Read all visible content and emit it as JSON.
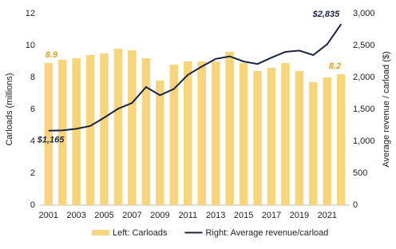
{
  "chart_data": {
    "type": "bar-line",
    "y_label": "Carloads (millions)",
    "y2_label": "Average revenue / carload ($)",
    "categories": [
      "2001",
      null,
      "2003",
      null,
      "2005",
      null,
      "2007",
      null,
      "2009",
      null,
      "2011",
      null,
      "2013",
      null,
      "2015",
      null,
      "2017",
      null,
      "2019",
      null,
      "2021",
      null
    ],
    "ylim": [
      0,
      12
    ],
    "yticks": [
      0,
      2,
      4,
      6,
      8,
      10,
      12
    ],
    "y2lim": [
      0,
      3000
    ],
    "y2ticks": [
      0,
      500,
      {
        "value": 1000,
        "label": "1,000"
      },
      {
        "value": 1500,
        "label": "1,500"
      },
      {
        "value": 2000,
        "label": "2,000"
      },
      {
        "value": 2500,
        "label": "2,500"
      },
      {
        "value": 3000,
        "label": "3,000"
      }
    ],
    "series": [
      {
        "name": "Left: Carloads",
        "type": "bar",
        "color": "#f7d57c",
        "values": [
          8.9,
          9.1,
          9.2,
          9.4,
          9.5,
          9.8,
          9.7,
          9.2,
          7.8,
          8.8,
          9.0,
          9.0,
          9.0,
          9.6,
          8.9,
          8.4,
          8.6,
          8.9,
          8.4,
          7.7,
          8.0,
          8.2
        ],
        "value_labels": [
          "8.9",
          null,
          null,
          null,
          null,
          null,
          null,
          null,
          null,
          null,
          null,
          null,
          null,
          null,
          null,
          null,
          null,
          null,
          null,
          null,
          null,
          "8.2"
        ],
        "label_color": "#d9a520"
      },
      {
        "name": "Right: Average revenue/carload",
        "type": "line",
        "axis": "y2",
        "color": "#1c2540",
        "values": [
          1165,
          1170,
          1195,
          1240,
          1370,
          1510,
          1600,
          1850,
          1720,
          1820,
          2040,
          2170,
          2290,
          2330,
          2250,
          2210,
          2310,
          2400,
          2420,
          2350,
          2520,
          2835
        ],
        "value_labels": [
          "$1,165",
          null,
          null,
          null,
          null,
          null,
          null,
          null,
          null,
          null,
          null,
          null,
          null,
          null,
          null,
          null,
          null,
          null,
          null,
          null,
          null,
          "$2,835"
        ],
        "label_color": "#1c2540"
      }
    ],
    "legend": "bottom"
  }
}
